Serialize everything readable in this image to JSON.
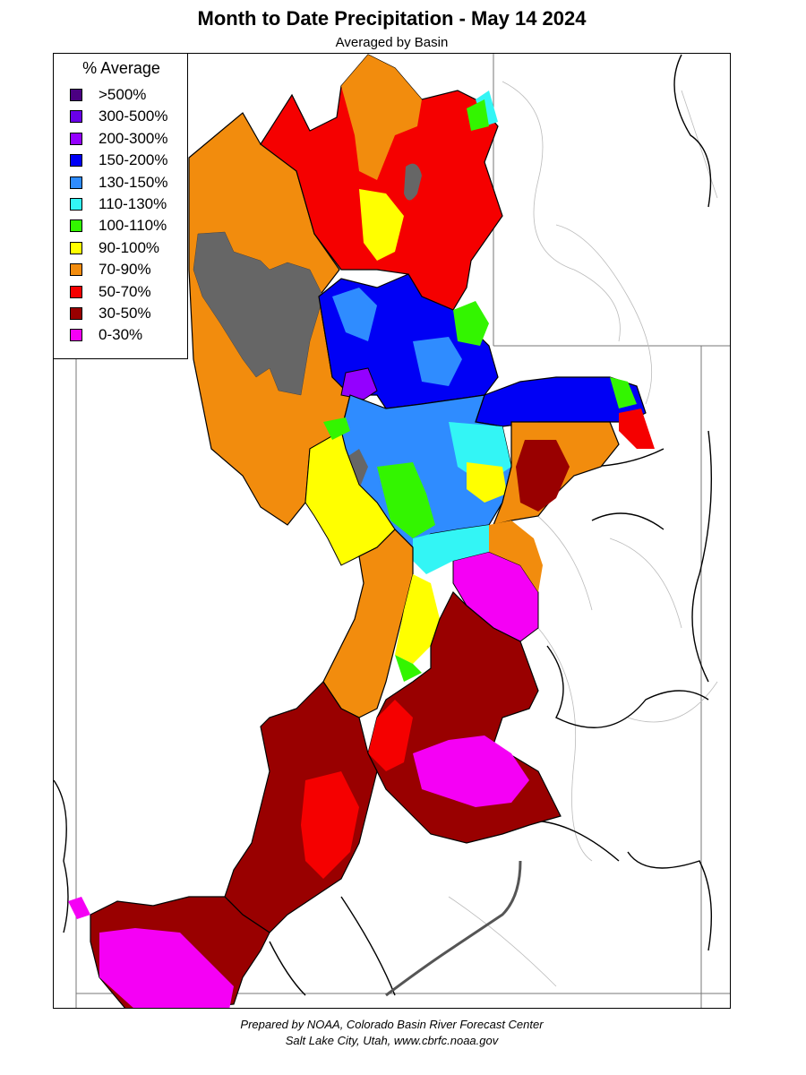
{
  "title": "Month to Date Precipitation - May 14 2024",
  "subtitle": "Averaged by Basin",
  "legend": {
    "title": "% Average",
    "items": [
      {
        "label": ">500%",
        "color": "#4b0082"
      },
      {
        "label": "300-500%",
        "color": "#6a00e8"
      },
      {
        "label": "200-300%",
        "color": "#9400ff"
      },
      {
        "label": "150-200%",
        "color": "#0000f5"
      },
      {
        "label": "130-150%",
        "color": "#2f8cff"
      },
      {
        "label": "110-130%",
        "color": "#33f5f5"
      },
      {
        "label": "100-110%",
        "color": "#33f500"
      },
      {
        "label": "90-100%",
        "color": "#ffff00"
      },
      {
        "label": "70-90%",
        "color": "#f28c0d"
      },
      {
        "label": "50-70%",
        "color": "#f50000"
      },
      {
        "label": "30-50%",
        "color": "#990000"
      },
      {
        "label": "0-30%",
        "color": "#f500f5"
      }
    ]
  },
  "footer": {
    "line1": "Prepared by NOAA, Colorado Basin River Forecast Center",
    "line2": "Salt Lake City, Utah, www.cbrfc.noaa.gov"
  }
}
